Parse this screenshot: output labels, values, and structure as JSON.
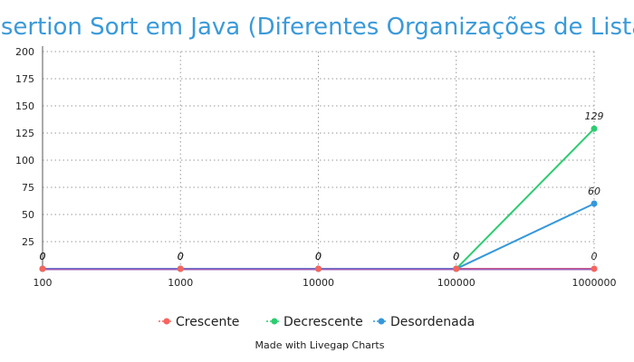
{
  "chart_data": {
    "type": "line",
    "title": "Insertion Sort em Java (Diferentes Organizações de Lista)",
    "categories": [
      "100",
      "1000",
      "10000",
      "100000",
      "1000000"
    ],
    "ylim": [
      0,
      200
    ],
    "yticks": [
      "25",
      "50",
      "75",
      "100",
      "125",
      "150",
      "175",
      "200"
    ],
    "grid": true,
    "legend_position": "bottom",
    "series": [
      {
        "name": "Crescente",
        "color": "#f5655f",
        "values": [
          0,
          0,
          0,
          0,
          0
        ],
        "labels": [
          "0",
          "0",
          "0",
          "0",
          "0"
        ]
      },
      {
        "name": "Decrescente",
        "color": "#2ecc71",
        "values": [
          0,
          0,
          0,
          0,
          129
        ],
        "labels": [
          "0",
          "0",
          "0",
          "0",
          "129"
        ]
      },
      {
        "name": "Desordenada",
        "color": "#3498db",
        "values": [
          0,
          0,
          0,
          0,
          60
        ],
        "labels": [
          "0",
          "0",
          "0",
          "0",
          "60"
        ]
      }
    ],
    "overlay_line_color": "#9b59b6"
  },
  "credit": "Made with Livegap Charts"
}
